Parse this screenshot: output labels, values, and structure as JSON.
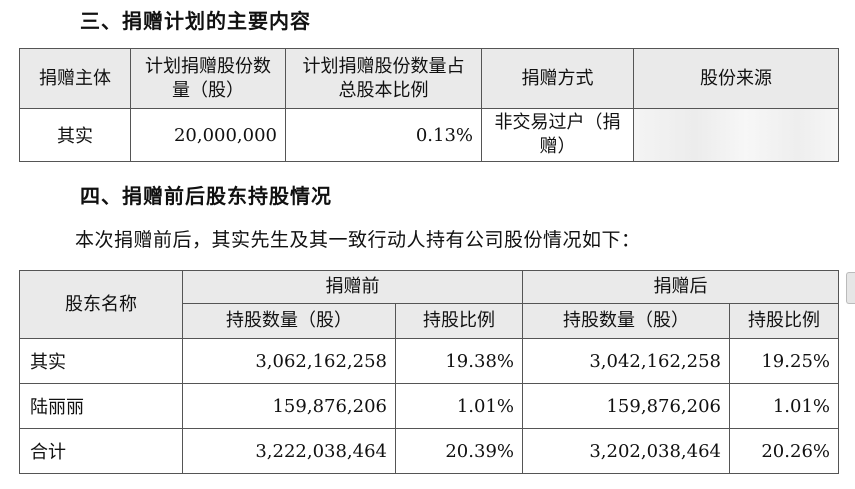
{
  "section3": {
    "title": "三、捐赠计划的主要内容",
    "headers": [
      "捐赠主体",
      "计划捐赠股份数量（股）",
      "计划捐赠股份数量占总股本比例",
      "捐赠方式",
      "股份来源"
    ],
    "row": {
      "donor": "其实",
      "shares": "20,000,000",
      "ratio": "0.13%",
      "method": "非交易过户（捐赠）",
      "source": ""
    }
  },
  "section4": {
    "title": "四、捐赠前后股东持股情况",
    "intro": "本次捐赠前后，其实先生及其一致行动人持有公司股份情况如下：",
    "header_name": "股东名称",
    "header_before": "捐赠前",
    "header_after": "捐赠后",
    "sub_shares": "持股数量（股）",
    "sub_ratio": "持股比例",
    "rows": [
      {
        "name": "其实",
        "before_shares": "3,062,162,258",
        "before_ratio": "19.38%",
        "after_shares": "3,042,162,258",
        "after_ratio": "19.25%"
      },
      {
        "name": "陆丽丽",
        "before_shares": "159,876,206",
        "before_ratio": "1.01%",
        "after_shares": "159,876,206",
        "after_ratio": "1.01%"
      },
      {
        "name": "合计",
        "before_shares": "3,222,038,464",
        "before_ratio": "20.39%",
        "after_shares": "3,202,038,464",
        "after_ratio": "20.26%"
      }
    ]
  }
}
